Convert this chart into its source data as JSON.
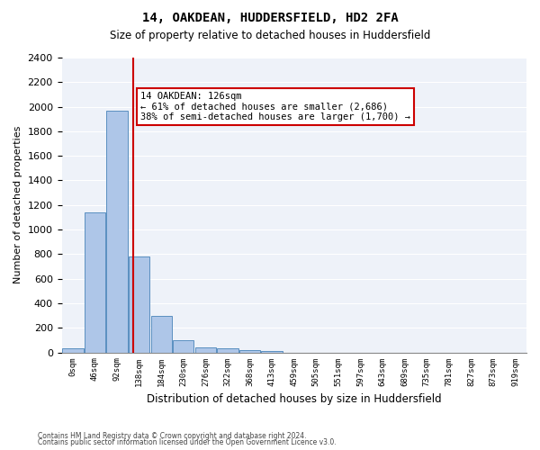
{
  "title1": "14, OAKDEAN, HUDDERSFIELD, HD2 2FA",
  "title2": "Size of property relative to detached houses in Huddersfield",
  "xlabel": "Distribution of detached houses by size in Huddersfield",
  "ylabel": "Number of detached properties",
  "annotation_line1": "14 OAKDEAN: 126sqm",
  "annotation_line2": "← 61% of detached houses are smaller (2,686)",
  "annotation_line3": "38% of semi-detached houses are larger (1,700) →",
  "footer1": "Contains HM Land Registry data © Crown copyright and database right 2024.",
  "footer2": "Contains public sector information licensed under the Open Government Licence v3.0.",
  "bin_labels": [
    "0sqm",
    "46sqm",
    "92sqm",
    "138sqm",
    "184sqm",
    "230sqm",
    "276sqm",
    "322sqm",
    "368sqm",
    "413sqm",
    "459sqm",
    "505sqm",
    "551sqm",
    "597sqm",
    "643sqm",
    "689sqm",
    "735sqm",
    "781sqm",
    "827sqm",
    "873sqm",
    "919sqm"
  ],
  "bar_values": [
    30,
    1140,
    1970,
    780,
    300,
    100,
    40,
    30,
    20,
    10,
    0,
    0,
    0,
    0,
    0,
    0,
    0,
    0,
    0,
    0,
    0
  ],
  "bar_color": "#aec6e8",
  "bar_edge_color": "#5a8fc0",
  "property_line_x": 2.73,
  "property_line_color": "#cc0000",
  "ylim": [
    0,
    2400
  ],
  "yticks": [
    0,
    200,
    400,
    600,
    800,
    1000,
    1200,
    1400,
    1600,
    1800,
    2000,
    2200,
    2400
  ],
  "annotation_box_color": "#ffffff",
  "annotation_border_color": "#cc0000",
  "bg_color": "#eef2f9"
}
